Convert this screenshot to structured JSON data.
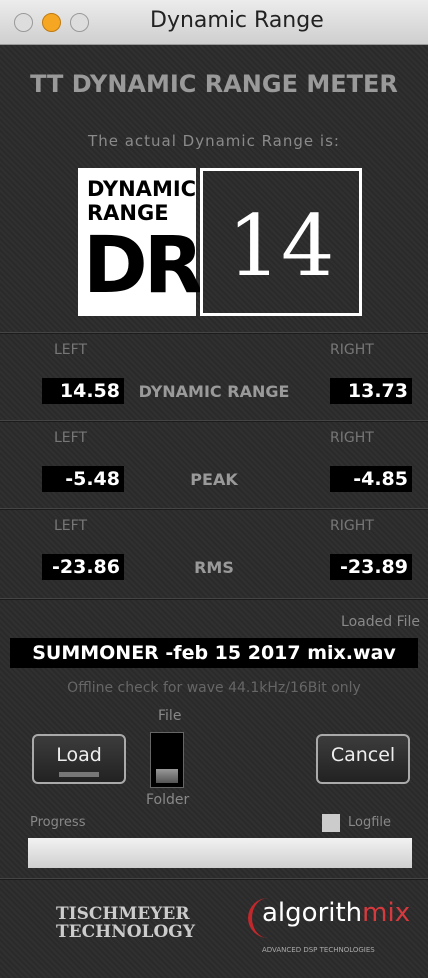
{
  "window": {
    "title": "Dynamic Range"
  },
  "header": {
    "title": "TT DYNAMIC RANGE METER",
    "subtitle": "The actual Dynamic Range is:"
  },
  "logo": {
    "line1": "DYNAMIC",
    "line2": "RANGE",
    "mark": "DR",
    "value": "14"
  },
  "rows": [
    {
      "left_label": "LEFT",
      "left": "14.58",
      "name": "DYNAMIC RANGE",
      "right_label": "RIGHT",
      "right": "13.73"
    },
    {
      "left_label": "LEFT",
      "left": "-5.48",
      "name": "PEAK",
      "right_label": "RIGHT",
      "right": "-4.85"
    },
    {
      "left_label": "LEFT",
      "left": "-23.86",
      "name": "RMS",
      "right_label": "RIGHT",
      "right": "-23.89"
    }
  ],
  "file": {
    "label": "Loaded File",
    "name": "SUMMONER -feb 15 2017 mix.wav",
    "note": "Offline check for wave 44.1kHz/16Bit only"
  },
  "controls": {
    "load": "Load",
    "file": "File",
    "folder": "Folder",
    "cancel": "Cancel",
    "progress": "Progress",
    "logfile": "Logfile"
  },
  "footer": {
    "brand1_top": "TISCHMEYER",
    "brand1_bottom": "TECHNOLOGY",
    "brand2_a": "algorith",
    "brand2_b": "mix",
    "brand2_tag": "ADVANCED DSP TECHNOLOGIES"
  }
}
